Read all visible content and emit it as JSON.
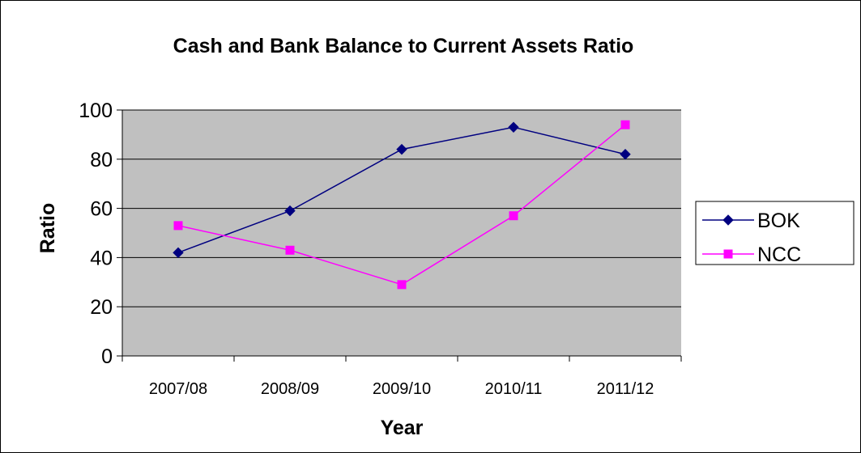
{
  "chart_data": {
    "type": "line",
    "title": "Cash and Bank Balance to Current Assets Ratio",
    "xlabel": "Year",
    "ylabel": "Ratio",
    "categories": [
      "2007/08",
      "2008/09",
      "2009/10",
      "2010/11",
      "2011/12"
    ],
    "ylim": [
      0,
      100
    ],
    "yticks": [
      0,
      20,
      40,
      60,
      80,
      100
    ],
    "grid": true,
    "legend_position": "right",
    "plot_background": "#c0c0c0",
    "series": [
      {
        "name": "BOK",
        "values": [
          42,
          59,
          84,
          93,
          82
        ],
        "color": "#000080",
        "marker": "diamond"
      },
      {
        "name": "NCC",
        "values": [
          53,
          43,
          29,
          57,
          94
        ],
        "color": "#ff00ff",
        "marker": "square"
      }
    ]
  }
}
